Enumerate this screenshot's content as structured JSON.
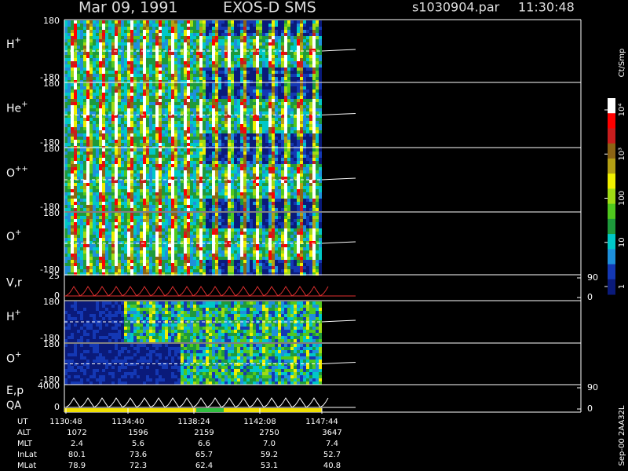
{
  "header": {
    "date": "Mar 09, 1991",
    "instrument": "EXOS-D SMS",
    "file": "s1030904.par",
    "time": "11:30:48"
  },
  "panels": [
    {
      "name": "H",
      "charge": "+",
      "yticks": [
        180,
        -180
      ]
    },
    {
      "name": "He",
      "charge": "+",
      "yticks": [
        180,
        -180
      ]
    },
    {
      "name": "O",
      "charge": "++",
      "yticks": [
        180,
        -180
      ]
    },
    {
      "name": "O",
      "charge": "+",
      "yticks": [
        180,
        -180
      ]
    },
    {
      "name": "V,r",
      "yticks": [
        25,
        0
      ],
      "y2ticks": [
        90,
        0
      ]
    },
    {
      "name": "H",
      "charge": "+",
      "yticks": [
        180,
        -180
      ]
    },
    {
      "name": "O",
      "charge": "+",
      "yticks": [
        180,
        -180
      ]
    },
    {
      "name": "E,p",
      "name2": "QA",
      "yticks": [
        4000,
        0
      ],
      "y2ticks": [
        90,
        0
      ]
    }
  ],
  "colorbar": {
    "label": "Ct/Smp",
    "ticks": [
      {
        "value": 10000,
        "label": "10⁴"
      },
      {
        "value": 1000,
        "label": "10³"
      },
      100,
      10,
      1
    ]
  },
  "table": {
    "labels": [
      "UT",
      "ALT",
      "MLT",
      "InLat",
      "MLat"
    ],
    "rows": [
      [
        "1130:48",
        "1134:40",
        "1138:24",
        "1142:08",
        "1147:44"
      ],
      [
        "1072",
        "1596",
        "2159",
        "2750",
        "3647"
      ],
      [
        "2.4",
        "5.6",
        "6.6",
        "7.0",
        "7.4"
      ],
      [
        "80.1",
        "73.6",
        "65.7",
        "59.2",
        "52.7"
      ],
      [
        "78.9",
        "72.3",
        "62.4",
        "53.1",
        "40.8"
      ]
    ]
  },
  "footer": "Sep-00 2AA32L"
}
